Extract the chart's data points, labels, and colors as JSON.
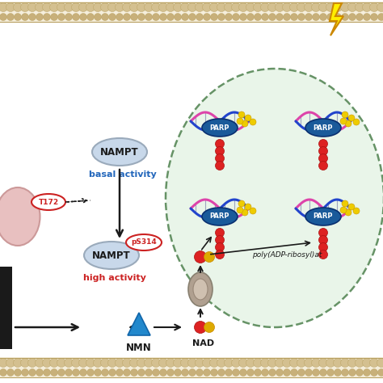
{
  "bg_color": "#ffffff",
  "membrane_color": "#d4c4a0",
  "membrane_dot_color": "#c8b888",
  "cell_bg": "#e8f5e8",
  "cell_border": "#5a8a5a",
  "nampt_fill": "#c8d8ea",
  "nampt_border": "#9aaabb",
  "nampt_text": "#1a1a1a",
  "basal_text_color": "#2266bb",
  "high_text_color": "#cc2222",
  "ps314_border": "#cc2222",
  "ps314_text": "#cc2222",
  "t172_border": "#cc2222",
  "t172_text": "#cc2222",
  "ampk_fill": "#e8c0c0",
  "ampk_border": "#cc9999",
  "arrow_color": "#1a1a1a",
  "parp_fill": "#1a5a9a",
  "parp_text": "#ffffff",
  "nmn_label": "NMN",
  "nad_label": "NAD",
  "nad_red": "#dd2222",
  "nad_yellow": "#ddaa00",
  "poly_text": "poly(ADP-ribosyl)at",
  "lightning_yellow": "#ffee00",
  "lightning_outline": "#cc8800",
  "dna_pink": "#dd44aa",
  "dna_blue": "#2244cc",
  "red_dot": "#dd2222",
  "yellow_dot": "#eecc00",
  "transporter_fill": "#b8a898",
  "transporter_inner": "#d4c4b4",
  "black_rect": "#1a1a1a",
  "nmn_blue": "#2288cc"
}
